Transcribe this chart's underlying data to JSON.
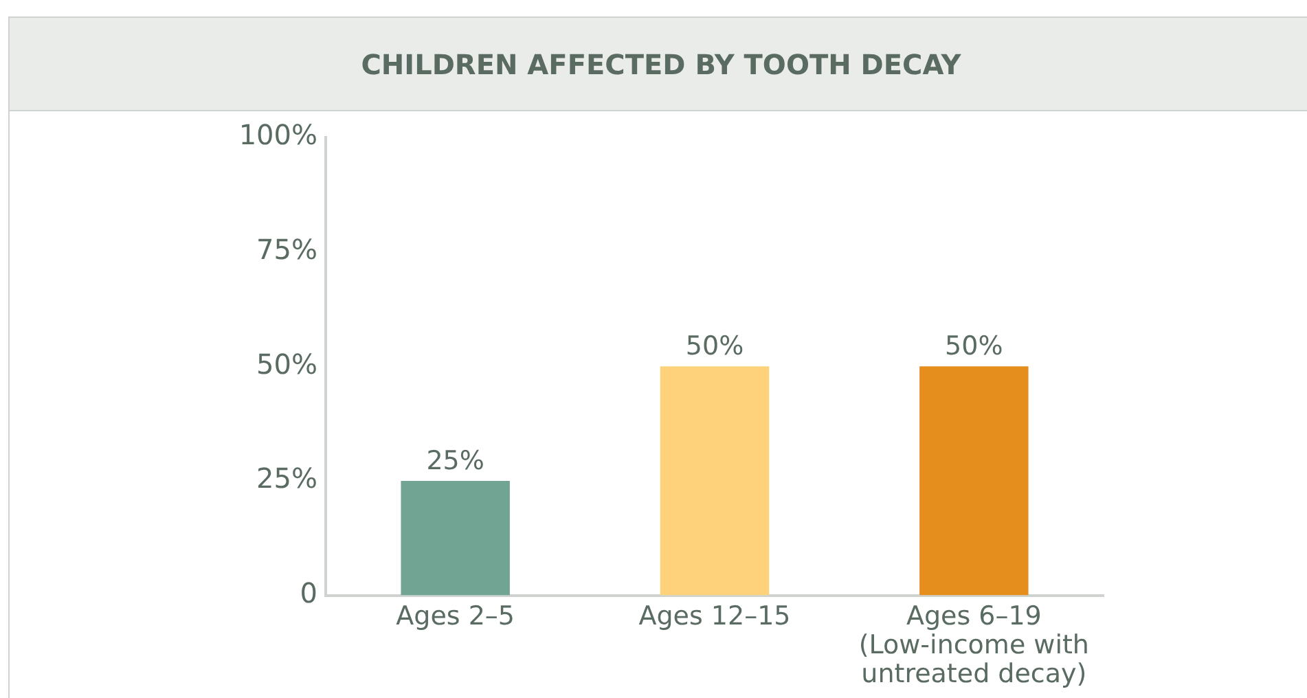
{
  "chart_data": {
    "type": "bar",
    "title": "CHILDREN AFFECTED BY TOOTH DECAY",
    "categories": [
      "Ages 2–5",
      "Ages 12–15",
      "Ages 6–19\n(Low-income with\nuntreated decay)"
    ],
    "values": [
      25,
      50,
      50
    ],
    "colors": [
      "#71a493",
      "#fdd27a",
      "#e58e1e"
    ],
    "ylim": [
      0,
      100
    ],
    "yticks": [
      {
        "value": 0,
        "label": "0"
      },
      {
        "value": 25,
        "label": "25%"
      },
      {
        "value": 50,
        "label": "50%"
      },
      {
        "value": 75,
        "label": "75%"
      },
      {
        "value": 100,
        "label": "100%"
      }
    ],
    "value_labels": [
      "25%",
      "50%",
      "50%"
    ],
    "grid": false,
    "legend": false
  }
}
